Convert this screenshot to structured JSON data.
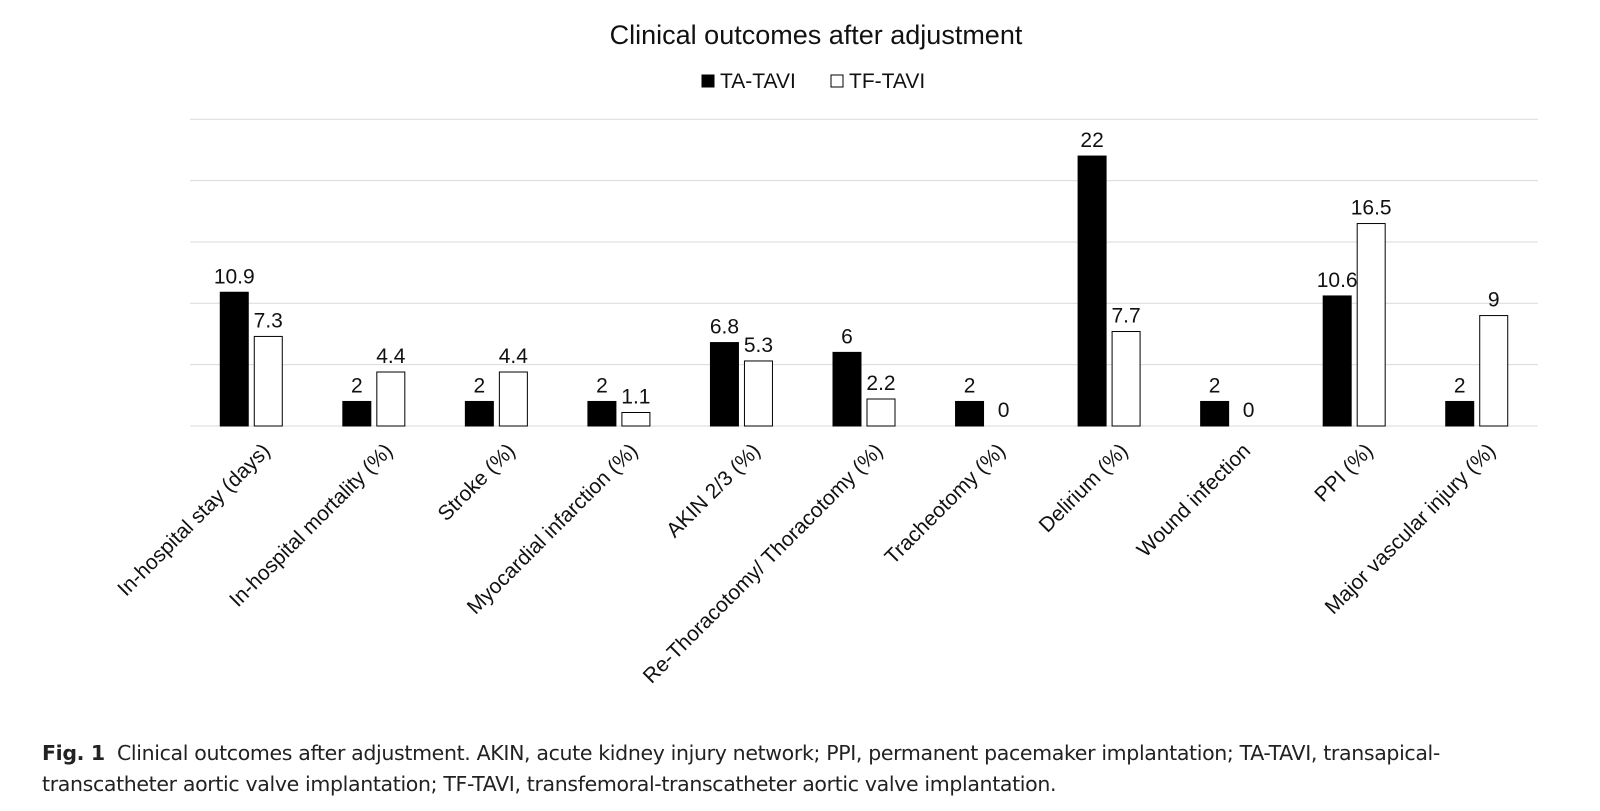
{
  "chart_data": {
    "type": "bar",
    "title": "Clinical outcomes after adjustment",
    "xlabel": "",
    "ylabel": "",
    "ylim": [
      0,
      25
    ],
    "grid": true,
    "legend_position": "top-center",
    "categories": [
      "In-hospital stay (days)",
      "In-hospital mortality (%)",
      "Stroke (%)",
      "Myocardial infarction (%)",
      "AKIN 2/3 (%)",
      "Re-Thoracotomy/ Thoracotomy (%)",
      "Tracheotomy (%)",
      "Delirium (%)",
      "Wound infection",
      "PPI (%)",
      "Major vascular injury (%)"
    ],
    "series": [
      {
        "name": "TA-TAVI",
        "fill": "#000000",
        "values": [
          10.9,
          2,
          2,
          2,
          6.8,
          6,
          2,
          22,
          2,
          10.6,
          2
        ]
      },
      {
        "name": "TF-TAVI",
        "fill": "#ffffff",
        "values": [
          7.3,
          4.4,
          4.4,
          1.1,
          5.3,
          2.2,
          0,
          7.7,
          0,
          16.5,
          9
        ]
      }
    ]
  },
  "caption": {
    "label": "Fig. 1",
    "text": "Clinical outcomes after adjustment. AKIN, acute kidney injury network; PPI, permanent pacemaker implantation; TA-TAVI, transapical-transcatheter aortic valve implantation; TF-TAVI, transfemoral-transcatheter aortic valve implantation."
  }
}
